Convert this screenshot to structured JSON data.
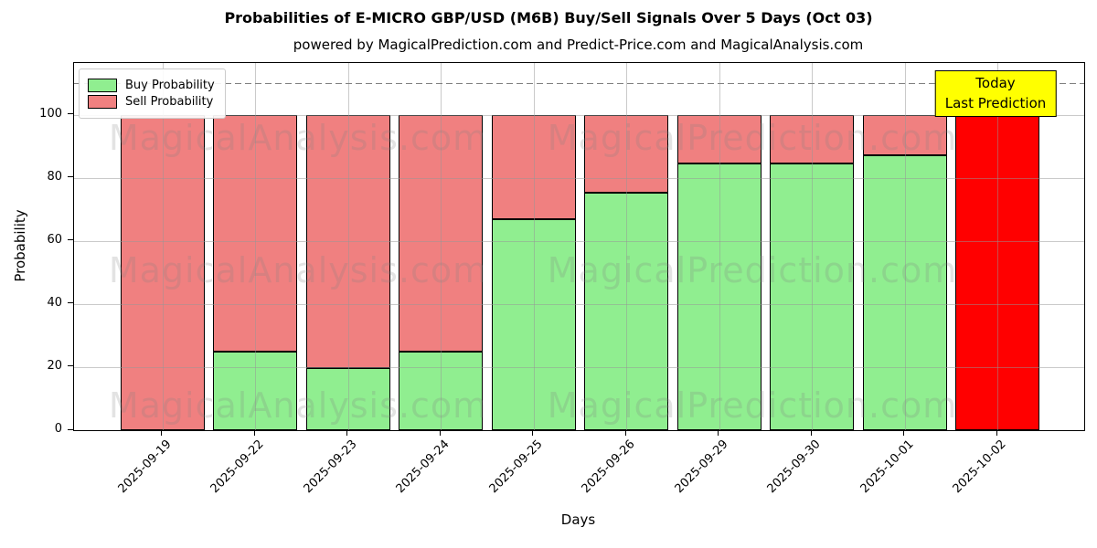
{
  "figure": {
    "watermark_left": "MagicalAnalysis.com",
    "watermark_right": "MagicalPrediction.com"
  },
  "legend": {
    "items": [
      {
        "label": "Buy Probability",
        "color": "#90ee90"
      },
      {
        "label": "Sell Probability",
        "color": "#f08080"
      }
    ]
  },
  "annotation": {
    "line1": "Today",
    "line2": "Last Prediction",
    "bg_color": "#ffff00",
    "border_color": "#000000"
  },
  "chart_data": {
    "type": "bar",
    "stacked": true,
    "title": "Probabilities of E-MICRO GBP/USD (M6B) Buy/Sell Signals Over 5 Days (Oct 03)",
    "subtitle": "powered by MagicalPrediction.com and Predict-Price.com and MagicalAnalysis.com",
    "xlabel": "Days",
    "ylabel": "Probability",
    "categories": [
      "2025-09-19",
      "2025-09-22",
      "2025-09-23",
      "2025-09-24",
      "2025-09-25",
      "2025-09-26",
      "2025-09-29",
      "2025-09-30",
      "2025-10-01",
      "2025-10-02"
    ],
    "series": [
      {
        "name": "Buy Probability",
        "color": "#90ee90",
        "values": [
          0,
          25,
          19.6,
          25,
          67,
          75.3,
          84.6,
          84.6,
          87.1,
          0
        ]
      },
      {
        "name": "Sell Probability",
        "color": "#f08080",
        "values": [
          100,
          75,
          80.4,
          75,
          33,
          24.7,
          15.4,
          15.4,
          12.9,
          100
        ]
      }
    ],
    "today_bar": {
      "index": 9,
      "sell_color": "#ff0000"
    },
    "yticks": [
      0,
      20,
      40,
      60,
      80,
      100
    ],
    "ylim": [
      0,
      116.4
    ],
    "dashed_line_y": 110,
    "grid": true,
    "legend_position": "upper left",
    "bar_edge_color": "#000000"
  }
}
